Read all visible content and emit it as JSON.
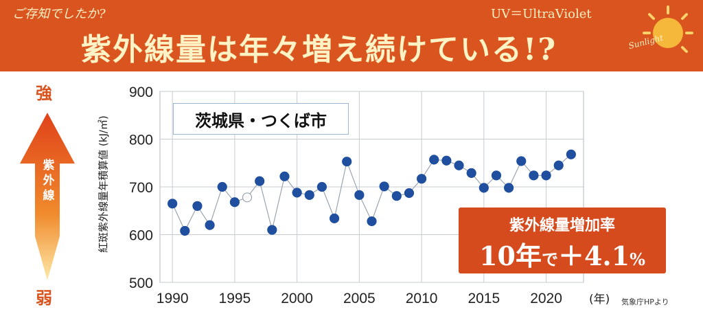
{
  "banner": {
    "kicker": "ご存知でしたか?",
    "title": "紫外線量は年々増え続けている!?",
    "uv_note": "UV＝UltraViolet",
    "sun_label": "Sunlight"
  },
  "side": {
    "strong_label": "強",
    "weak_label": "弱",
    "arrow_label": "紫外線"
  },
  "location_label": "茨城県・つくば市",
  "rate_box": {
    "title": "紫外線量増加率",
    "value_main": "10年",
    "value_de": "で",
    "value_plus": "＋4.1",
    "value_unit": "%"
  },
  "source_note": "気象庁HPより",
  "colors": {
    "banner": "#d9541f",
    "accent": "#d64b1e",
    "point": "#1f4f9e",
    "line": "#9aa4b0"
  },
  "chart_data": {
    "type": "scatter",
    "ylabel": "紅斑紫外線量年積算値 (kJ/㎡)",
    "xunit": "(年)",
    "xlim": [
      1990,
      2022
    ],
    "ylim": [
      500,
      900
    ],
    "xticks": [
      1990,
      1995,
      2000,
      2005,
      2010,
      2015,
      2020
    ],
    "yticks": [
      500,
      600,
      700,
      800,
      900
    ],
    "grid": true,
    "series": [
      {
        "x": [
          1990,
          1991,
          1992,
          1993,
          1994,
          1995,
          1996,
          1997,
          1998,
          1999,
          2000,
          2001,
          2002,
          2003,
          2004,
          2005,
          2006,
          2007,
          2008,
          2009,
          2010,
          2011,
          2012,
          2013,
          2014,
          2015,
          2016,
          2017,
          2018,
          2019,
          2020,
          2021,
          2022
        ],
        "y": [
          665,
          608,
          660,
          620,
          700,
          668,
          678,
          712,
          610,
          722,
          688,
          683,
          700,
          634,
          753,
          683,
          628,
          701,
          681,
          687,
          717,
          757,
          755,
          745,
          729,
          698,
          724,
          698,
          754,
          724,
          724,
          745,
          768
        ],
        "hollow": [
          1996
        ]
      }
    ]
  }
}
